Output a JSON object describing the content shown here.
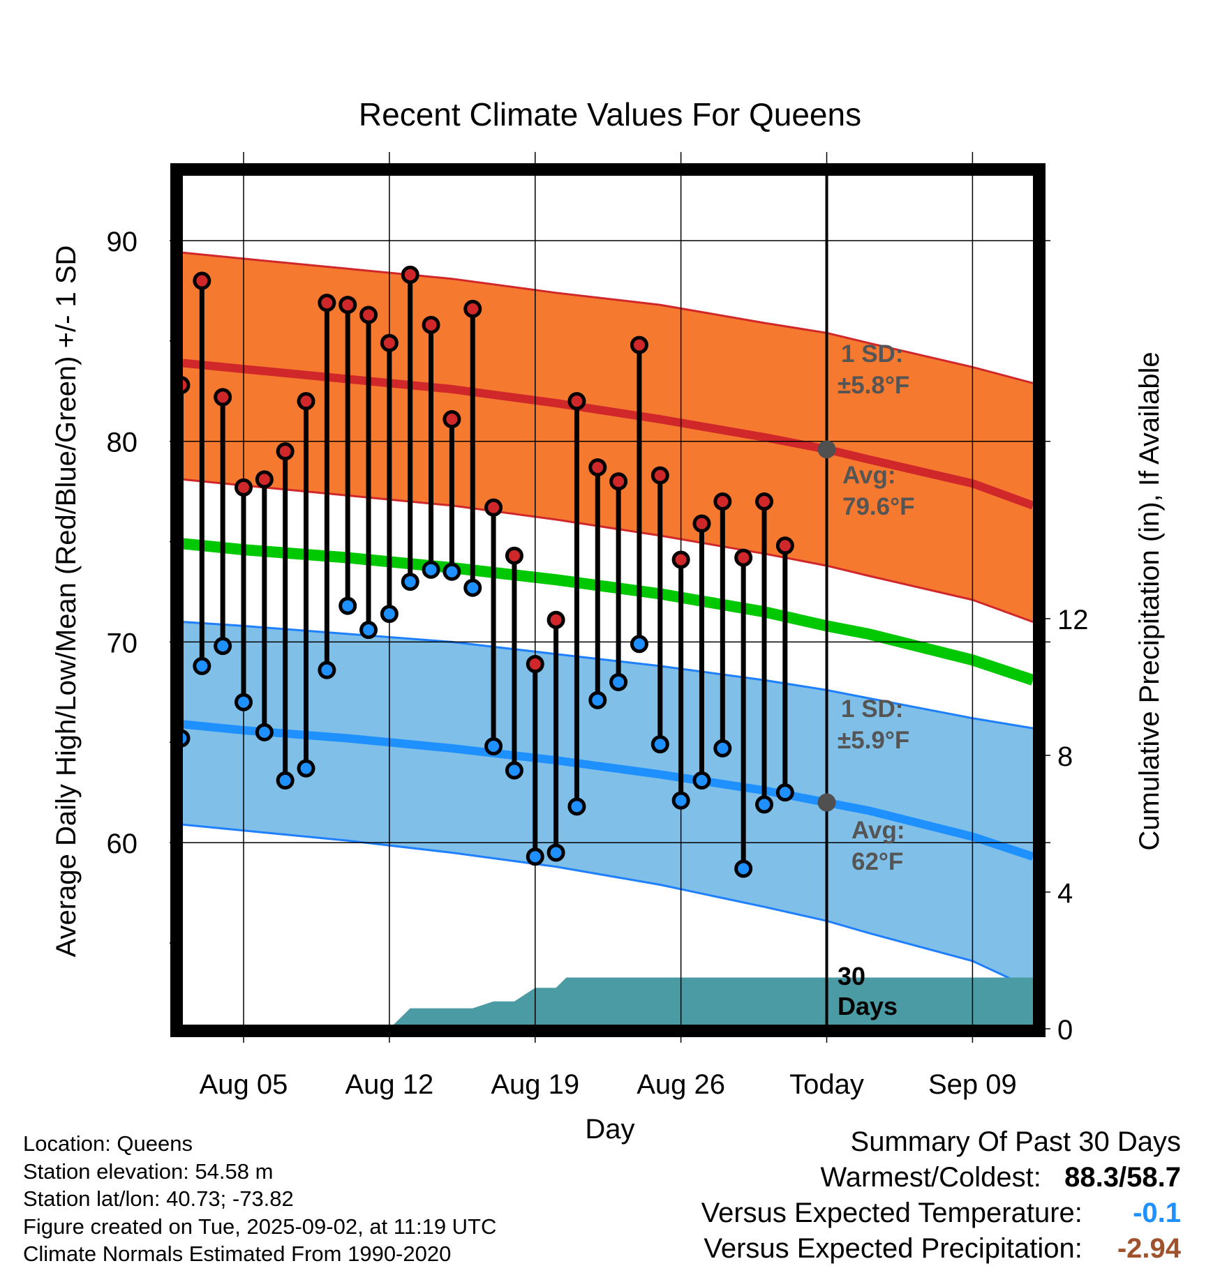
{
  "chart_data": {
    "type": "line",
    "title": "Recent Climate Values For Queens",
    "xlabel": "Day",
    "ylabel_left": "Average Daily High/Low/Mean (Red/Blue/Green) +/- 1 SD",
    "ylabel_right": "Cumulative Precipitation (in), If Available",
    "y_left_range": [
      51,
      94
    ],
    "y_left_ticks": [
      "60",
      "70",
      "80",
      "90"
    ],
    "y_right_ticks": [
      "0",
      "4",
      "8",
      "12"
    ],
    "x_tick_labels": [
      "Aug 05",
      "Aug 12",
      "Aug 19",
      "Aug 26",
      "Today",
      "Sep 09"
    ],
    "x_tick_days": [
      5,
      12,
      19,
      26,
      33,
      40
    ],
    "today_day": 33,
    "days": [
      2,
      3,
      4,
      5,
      6,
      7,
      8,
      9,
      10,
      11,
      12,
      13,
      14,
      15,
      16,
      17,
      18,
      19,
      20,
      21,
      22,
      23,
      24,
      25,
      26,
      27,
      28,
      29,
      30,
      31,
      32
    ],
    "daily_high": [
      82.8,
      88.0,
      82.2,
      77.7,
      78.1,
      79.5,
      82.0,
      86.9,
      86.8,
      86.3,
      84.9,
      88.3,
      85.8,
      81.1,
      86.6,
      76.7,
      74.3,
      68.9,
      71.1,
      82.0,
      78.7,
      78.0,
      84.8,
      78.3,
      74.1,
      75.9,
      77.0,
      74.2,
      77.0,
      74.8
    ],
    "daily_high_days": [
      2,
      3,
      4,
      5,
      6,
      7,
      8,
      9,
      10,
      11,
      12,
      13,
      14,
      15,
      16,
      17,
      18,
      19,
      20,
      21,
      22,
      23,
      24,
      25,
      26,
      27,
      28,
      29,
      30,
      31
    ],
    "daily_low": [
      65.2,
      68.8,
      69.8,
      67.0,
      65.5,
      63.1,
      63.7,
      68.6,
      71.8,
      70.6,
      71.4,
      73.0,
      73.6,
      73.5,
      72.7,
      64.8,
      63.6,
      59.3,
      59.5,
      61.8,
      67.1,
      68.0,
      69.9,
      64.9,
      62.1,
      63.1,
      64.7,
      58.7,
      61.9,
      62.5
    ],
    "normal_high": {
      "days": [
        0,
        5,
        10,
        15,
        20,
        25,
        30,
        33,
        35,
        40,
        43
      ],
      "mean": [
        83.9,
        83.6,
        83.1,
        82.6,
        81.9,
        81.1,
        80.2,
        79.6,
        79.1,
        77.9,
        76.8
      ],
      "upper": [
        89.4,
        89.1,
        88.6,
        88.1,
        87.4,
        86.8,
        85.9,
        85.4,
        84.9,
        83.7,
        82.9
      ],
      "lower": [
        78.1,
        77.8,
        77.3,
        76.8,
        76.1,
        75.3,
        74.4,
        73.8,
        73.3,
        72.1,
        71.0
      ]
    },
    "normal_mean": {
      "days": [
        0,
        5,
        10,
        15,
        20,
        25,
        30,
        33,
        35,
        40,
        43
      ],
      "values": [
        74.9,
        74.6,
        74.2,
        73.7,
        73.1,
        72.4,
        71.5,
        70.8,
        70.4,
        69.1,
        68.1
      ]
    },
    "normal_low": {
      "days": [
        0,
        5,
        10,
        15,
        20,
        25,
        30,
        33,
        35,
        40,
        43
      ],
      "mean": [
        65.9,
        65.6,
        65.2,
        64.7,
        64.1,
        63.4,
        62.6,
        62.0,
        61.6,
        60.3,
        59.3
      ],
      "upper": [
        71.0,
        70.8,
        70.4,
        70.0,
        69.4,
        68.8,
        68.1,
        67.6,
        67.2,
        66.2,
        65.7
      ],
      "lower": [
        60.9,
        60.6,
        60.1,
        59.5,
        58.8,
        57.9,
        56.8,
        56.1,
        55.5,
        54.1,
        52.7
      ]
    },
    "precip_cumulative": {
      "days": [
        1,
        11,
        12,
        13,
        16,
        17,
        18,
        19,
        20,
        20.5,
        21,
        43
      ],
      "values": [
        0,
        0,
        0,
        0.6,
        0.6,
        0.8,
        0.8,
        1.2,
        1.2,
        1.5,
        1.5,
        1.5
      ]
    },
    "annotations": {
      "high_sd": "1 SD:",
      "high_sd_value": "±5.8°F",
      "high_avg": "Avg:",
      "high_avg_value": "79.6°F",
      "low_sd": "1 SD:",
      "low_sd_value": "±5.9°F",
      "low_avg": "Avg:",
      "low_avg_value": "62°F",
      "period_line1": "30",
      "period_line2": "Days"
    },
    "colors": {
      "high_band": "#f57a30",
      "high_line": "#d0282a",
      "high_edge": "#d0282a",
      "mean_line": "#00c800",
      "low_band": "#80c0e8",
      "low_line": "#1e90ff",
      "low_edge": "#1e7fff",
      "high_point": "#d0282a",
      "low_point": "#1e90ff",
      "precip_fill": "#4a9ba3",
      "annotation": "#555555",
      "marker": "#505050"
    }
  },
  "footer": {
    "location": "Location: Queens",
    "elevation": "Station elevation: 54.58 m",
    "latlon": "Station lat/lon: 40.73; -73.82",
    "created": "Figure created on Tue, 2025-09-02, at 11:19 UTC",
    "normals": "Climate Normals Estimated From 1990-2020"
  },
  "summary": {
    "title": "Summary Of Past 30 Days",
    "warmest_coldest_label": "Warmest/Coldest:",
    "warmest_coldest_value": "88.3/58.7",
    "temp_label": "Versus Expected Temperature:",
    "temp_value": "-0.1",
    "temp_color": "#1e90ff",
    "precip_label": "Versus Expected Precipitation:",
    "precip_value": "-2.94",
    "precip_color": "#a0522d"
  }
}
